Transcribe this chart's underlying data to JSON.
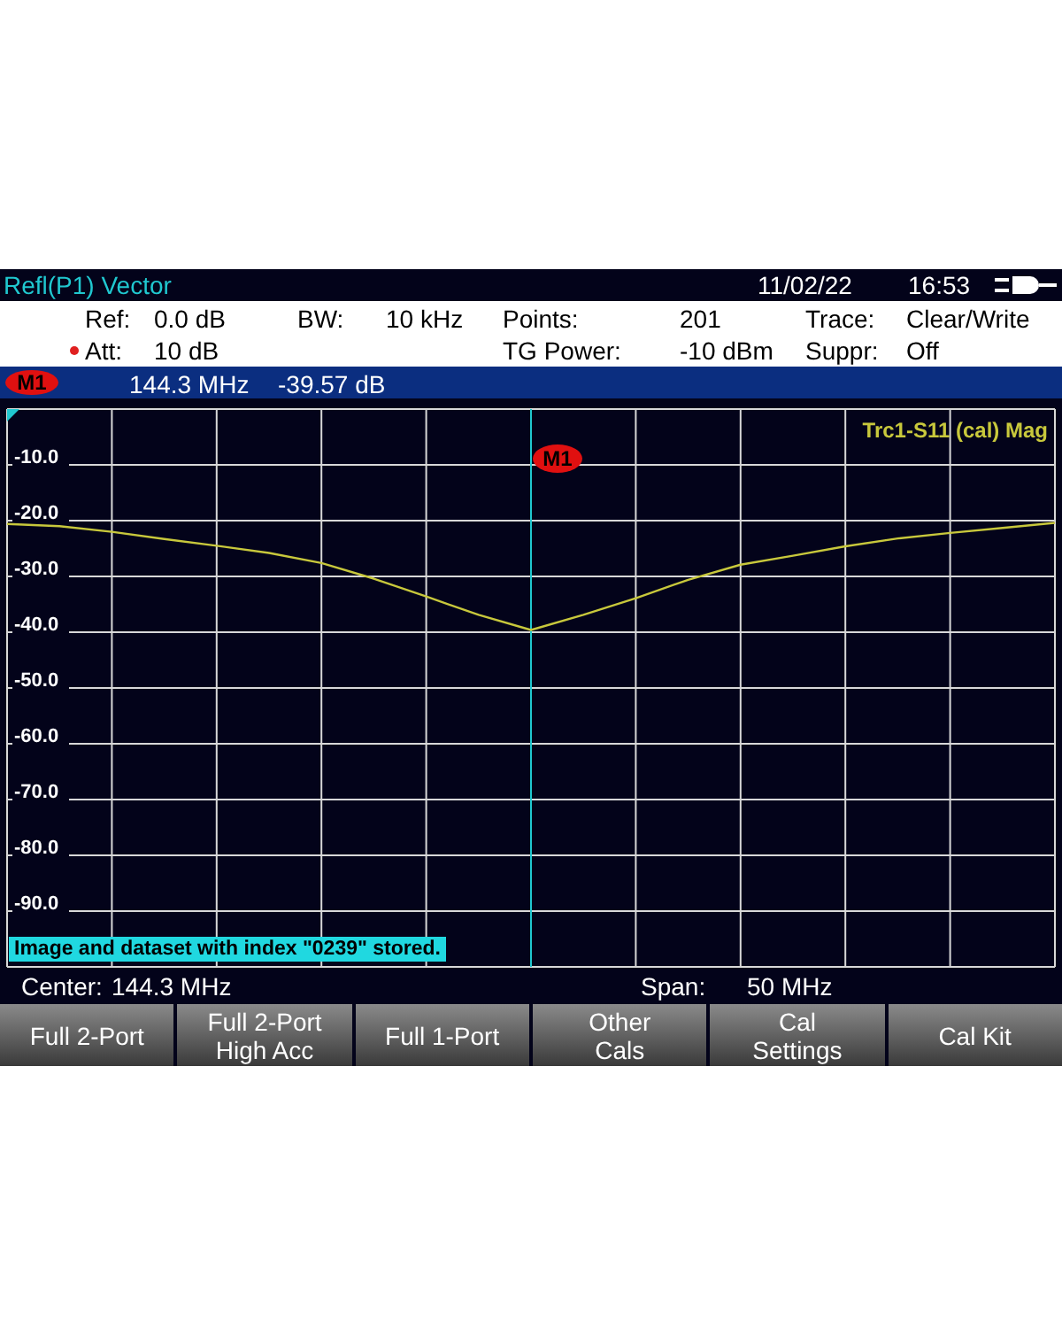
{
  "chart_data": {
    "type": "line",
    "title": "Refl(P1) Vector",
    "categories": [
      null,
      null,
      null,
      null,
      null,
      null,
      null,
      null,
      null,
      null,
      null,
      null,
      null,
      null,
      null,
      null,
      null,
      null,
      null,
      null,
      null
    ],
    "series": [
      {
        "name": "Trc1-S11 (cal) Mag",
        "color": "#c8c83c",
        "values": [
          -20.6,
          -21.0,
          -22.0,
          -23.3,
          -24.5,
          -25.8,
          -27.6,
          -30.4,
          -33.6,
          -36.9,
          -39.6,
          -36.9,
          -33.9,
          -30.6,
          -27.9,
          -26.3,
          -24.6,
          -23.2,
          -22.2,
          -21.3,
          -20.4
        ]
      }
    ],
    "ylim": [
      -100,
      0
    ],
    "yticks": [
      {
        "value": 0,
        "label": null
      },
      {
        "value": -10,
        "label": "-10.0"
      },
      {
        "value": -20,
        "label": "-20.0"
      },
      {
        "value": -30,
        "label": "-30.0"
      },
      {
        "value": -40,
        "label": "-40.0"
      },
      {
        "value": -50,
        "label": "-50.0"
      },
      {
        "value": -60,
        "label": "-60.0"
      },
      {
        "value": -70,
        "label": "-70.0"
      },
      {
        "value": -80,
        "label": "-80.0"
      },
      {
        "value": -90,
        "label": "-90.0"
      },
      {
        "value": -100,
        "label": null
      }
    ],
    "grid": true,
    "tick_labels": "y",
    "marker": "none",
    "line_style": "solid",
    "annotations": [
      "11/02/22",
      "16:53",
      "Ref:",
      "0.0 dB",
      "BW:",
      "10 kHz",
      "Points:",
      "201",
      "Trace:",
      "Clear/Write",
      "Att:",
      "10 dB",
      "TG Power:",
      "-10 dBm",
      "Suppr:",
      "Off",
      "M1",
      "144.3 MHz",
      "-39.57 dB",
      "Image and dataset with index \"0239\" stored.",
      "Center:",
      "144.3 MHz",
      "Span:",
      "50 MHz",
      "Full 2-Port",
      "Full 2-Port\nHigh Acc",
      "Full 1-Port",
      "Other\nCals",
      "Cal\nSettings",
      "Cal Kit",
      "M1"
    ]
  }
}
